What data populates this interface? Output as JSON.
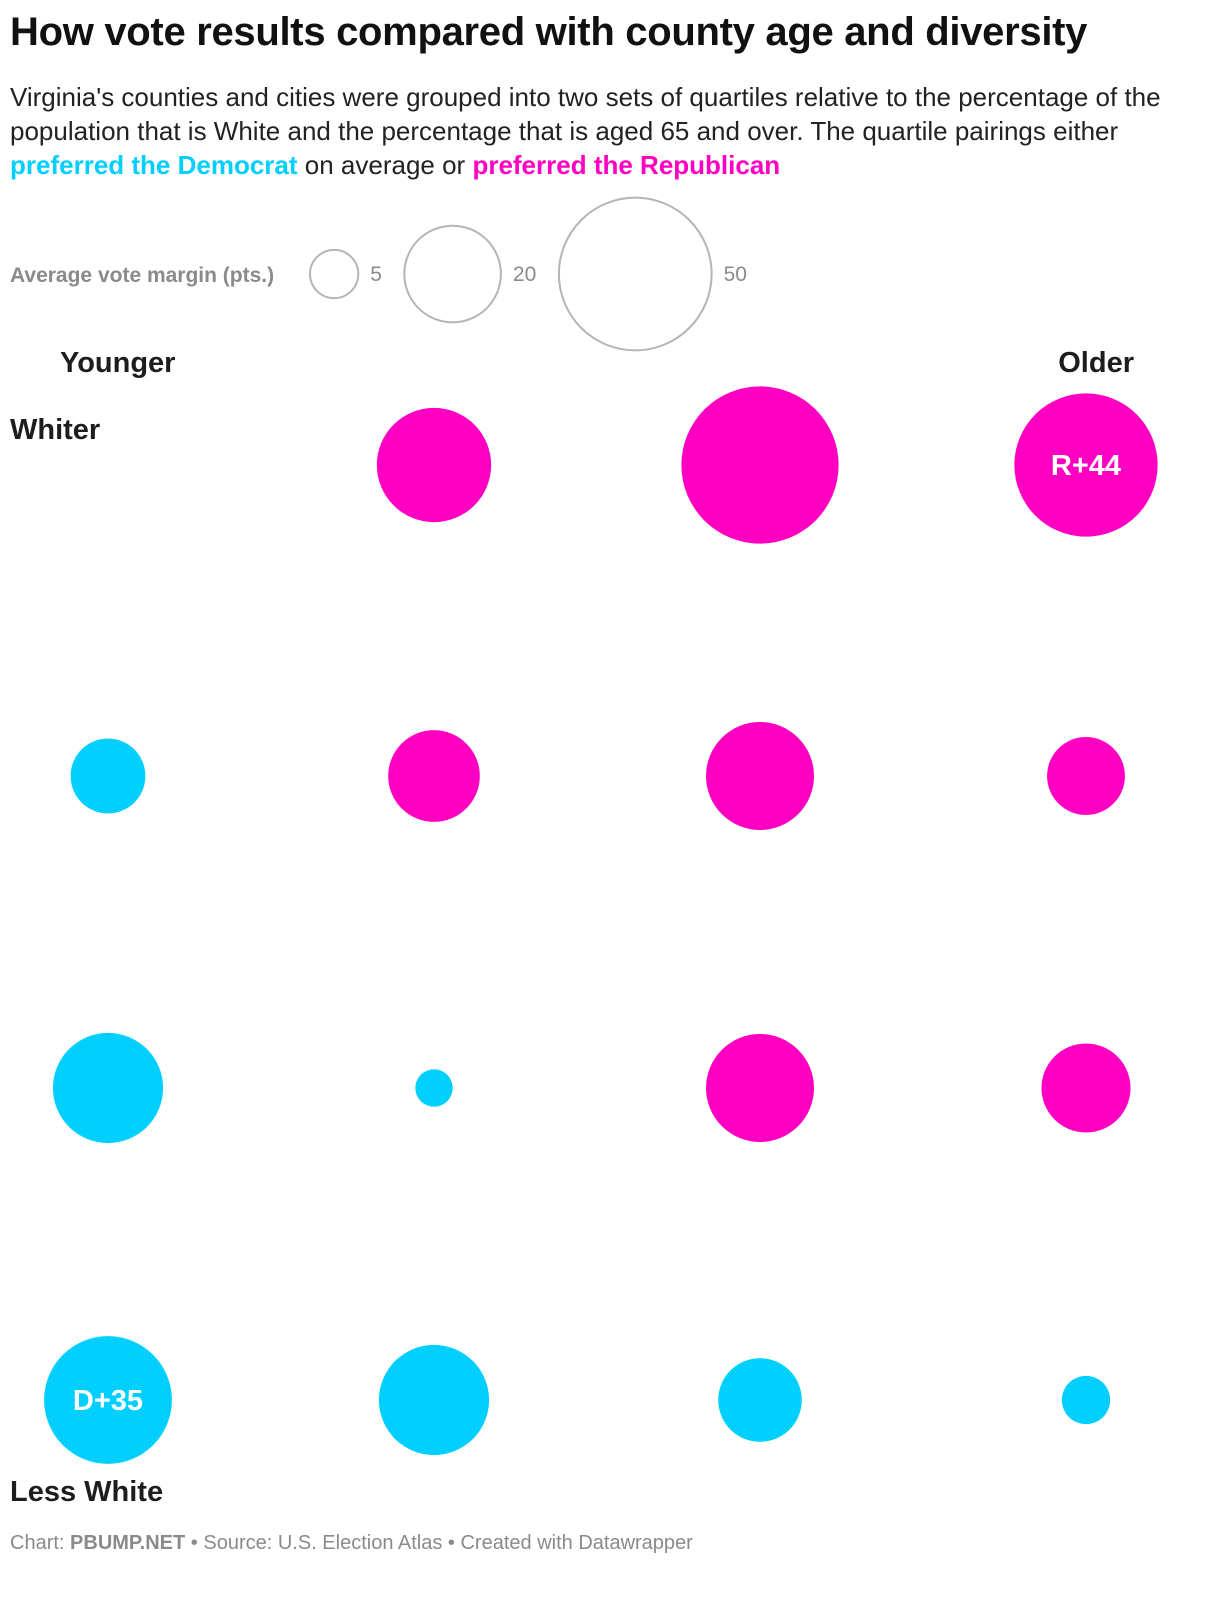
{
  "title": "How vote results compared with county age and diversity",
  "subtitle": {
    "text_1": "Virginia's counties and cities were grouped into two sets of quartiles relative to the percentage of the population that is White and the percentage that is aged 65 and over. The quartile pairings either ",
    "dem_text": "preferred the Democrat",
    "text_2": " on average or ",
    "rep_text": "preferred the Republican"
  },
  "colors": {
    "democrat": "#00cfff",
    "republican": "#ff00c3",
    "legend_stroke": "#b5b5b5"
  },
  "chart_data": {
    "type": "scatter",
    "encoding": "bubble size = absolute average vote margin (pts.); color = party preferred",
    "legend": {
      "title": "Average vote margin (pts.)",
      "values": [
        5,
        20,
        50
      ]
    },
    "axis_labels": {
      "x_left": "Younger",
      "x_right": "Older",
      "y_top": "Whiter",
      "y_bottom": "Less White"
    },
    "points": [
      {
        "white_row": 1,
        "age_col": 2,
        "party": "R",
        "margin": 28,
        "label": ""
      },
      {
        "white_row": 1,
        "age_col": 3,
        "party": "R",
        "margin": 53,
        "label": ""
      },
      {
        "white_row": 1,
        "age_col": 4,
        "party": "R",
        "margin": 44,
        "label": "R+44"
      },
      {
        "white_row": 2,
        "age_col": 1,
        "party": "D",
        "margin": 12,
        "label": ""
      },
      {
        "white_row": 2,
        "age_col": 2,
        "party": "R",
        "margin": 18,
        "label": ""
      },
      {
        "white_row": 2,
        "age_col": 3,
        "party": "R",
        "margin": 25,
        "label": ""
      },
      {
        "white_row": 2,
        "age_col": 4,
        "party": "R",
        "margin": 13,
        "label": ""
      },
      {
        "white_row": 3,
        "age_col": 1,
        "party": "D",
        "margin": 26,
        "label": ""
      },
      {
        "white_row": 3,
        "age_col": 2,
        "party": "D",
        "margin": 3,
        "label": ""
      },
      {
        "white_row": 3,
        "age_col": 3,
        "party": "R",
        "margin": 25,
        "label": ""
      },
      {
        "white_row": 3,
        "age_col": 4,
        "party": "R",
        "margin": 17,
        "label": ""
      },
      {
        "white_row": 4,
        "age_col": 1,
        "party": "D",
        "margin": 35,
        "label": "D+35"
      },
      {
        "white_row": 4,
        "age_col": 2,
        "party": "D",
        "margin": 26,
        "label": ""
      },
      {
        "white_row": 4,
        "age_col": 3,
        "party": "D",
        "margin": 15,
        "label": ""
      },
      {
        "white_row": 4,
        "age_col": 4,
        "party": "D",
        "margin": 5,
        "label": ""
      }
    ]
  },
  "footer": {
    "chart_prefix": "Chart: ",
    "chart_credit": "PBUMP.NET",
    "source": " • Source: U.S. Election Atlas • Created with Datawrapper"
  }
}
